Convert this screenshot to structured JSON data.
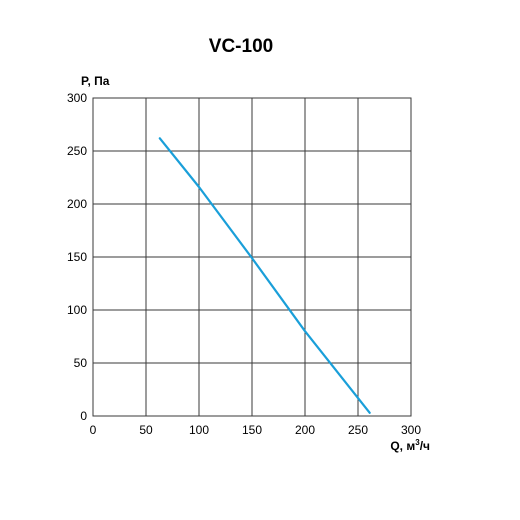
{
  "chart_data": {
    "type": "line",
    "title": "VC-100",
    "ylabel": "P, Па",
    "xlabel_prefix": "Q, м",
    "xlabel_sup": "3",
    "xlabel_suffix": "/ч",
    "xlim": [
      0,
      300
    ],
    "ylim": [
      0,
      300
    ],
    "xticks": [
      0,
      50,
      100,
      150,
      200,
      250,
      300
    ],
    "yticks": [
      0,
      50,
      100,
      150,
      200,
      250,
      300
    ],
    "grid": true,
    "legend": "none",
    "series": [
      {
        "color": "#1a9fd9",
        "x": [
          63,
          100,
          150,
          200,
          261
        ],
        "y": [
          262,
          216,
          149,
          80,
          3
        ]
      }
    ]
  }
}
